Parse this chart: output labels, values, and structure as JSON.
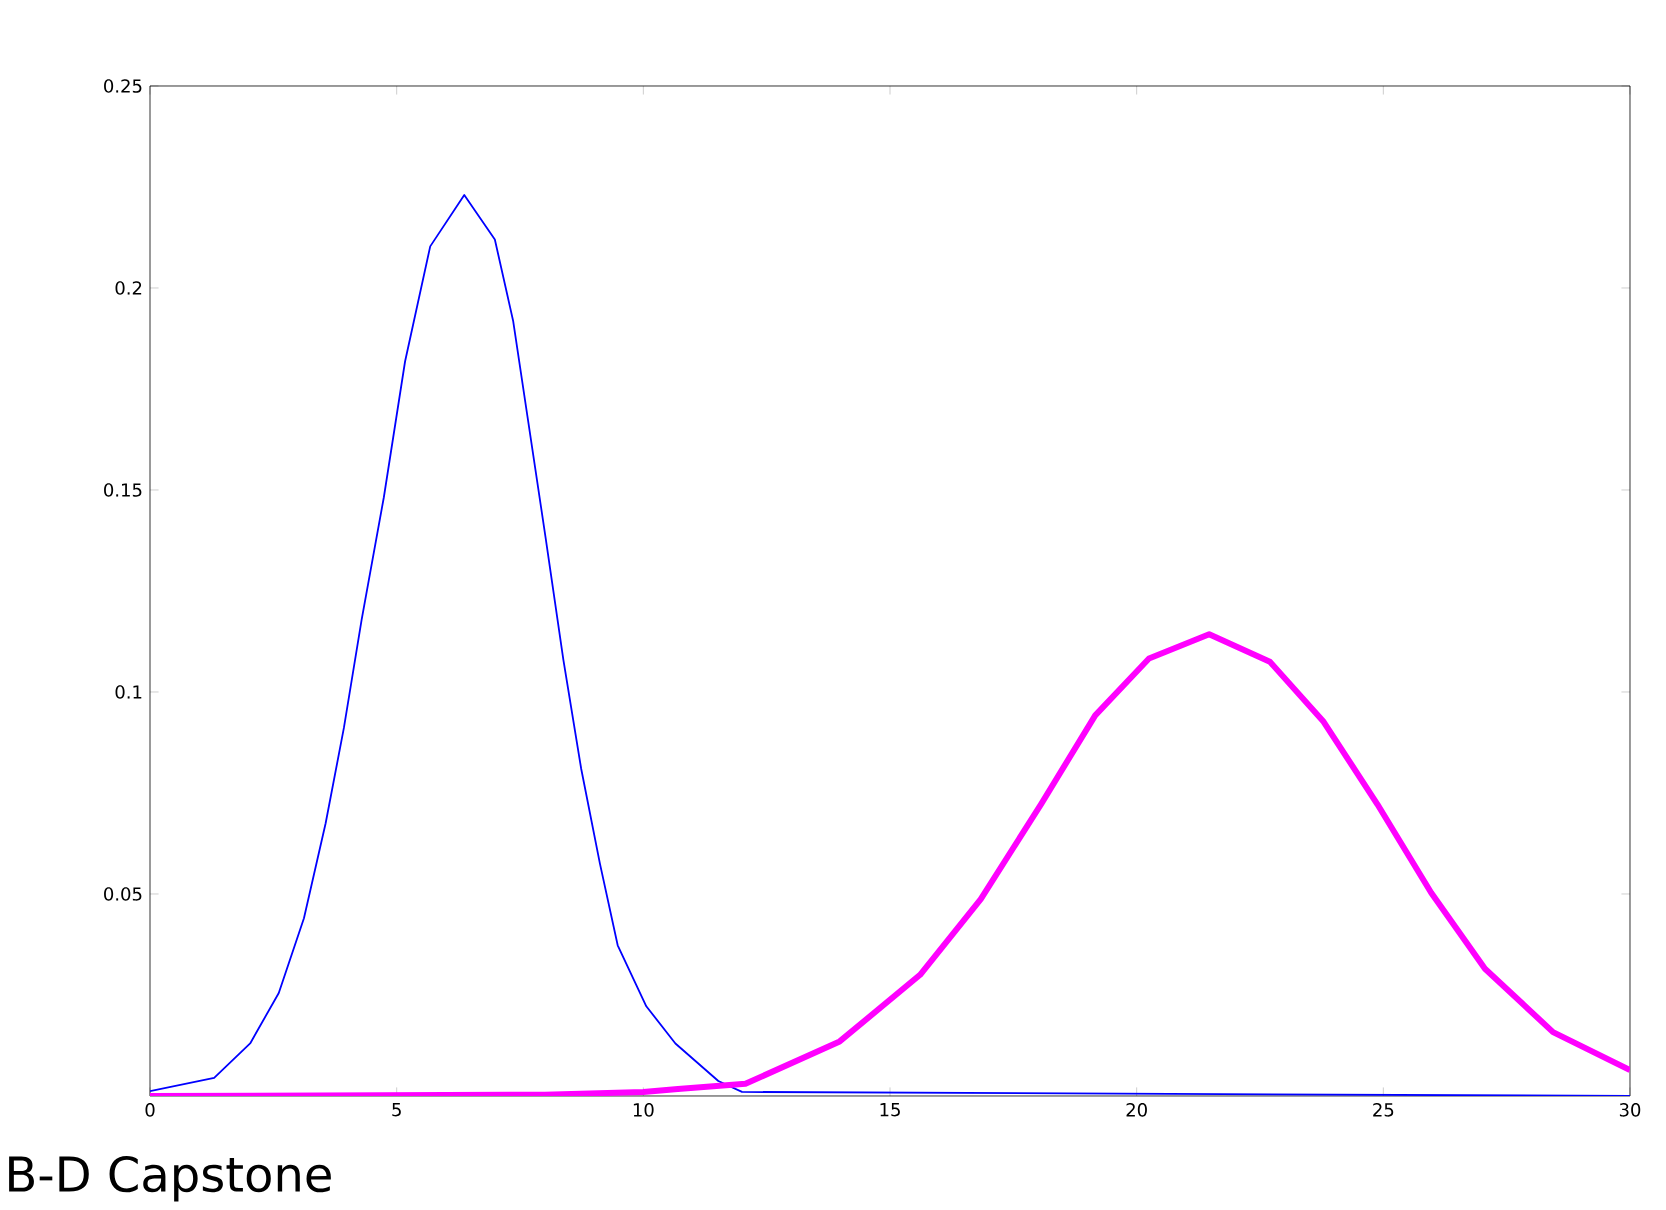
{
  "chart_data": {
    "type": "line",
    "xlim": [
      0,
      30
    ],
    "ylim": [
      0,
      0.25
    ],
    "xticks": [
      0,
      5,
      10,
      15,
      20,
      25,
      30
    ],
    "yticks": [
      0.05,
      0.1,
      0.15,
      0.2,
      0.25
    ],
    "marker": "none",
    "line_style": "solid",
    "annotations": [
      "B-D Capstone"
    ],
    "series": [
      {
        "color": "#0000ff",
        "x": [
          0,
          1.3,
          2.03,
          2.61,
          3.12,
          3.56,
          3.93,
          4.29,
          4.74,
          5.17,
          5.68,
          6.37,
          6.99,
          7.36,
          7.65,
          8.02,
          8.38,
          8.74,
          9.12,
          9.48,
          10.06,
          10.65,
          11.52,
          12,
          30
        ],
        "values": [
          0.0012,
          0.0045,
          0.013,
          0.0255,
          0.044,
          0.0675,
          0.0911,
          0.1179,
          0.1482,
          0.1818,
          0.2103,
          0.223,
          0.212,
          0.1919,
          0.1683,
          0.1381,
          0.1079,
          0.081,
          0.0575,
          0.0373,
          0.0222,
          0.013,
          0.0037,
          0.001,
          0
        ]
      },
      {
        "color": "#ff00ff",
        "x": [
          0,
          8,
          10,
          10.7,
          12.07,
          13.98,
          15.61,
          16.84,
          18.06,
          19.16,
          20.25,
          21.47,
          22.7,
          23.79,
          24.88,
          25.97,
          27.06,
          28.44,
          30
        ],
        "values": [
          0,
          0.0003,
          0.001,
          0.0017,
          0.003,
          0.0135,
          0.03,
          0.0487,
          0.0722,
          0.0942,
          0.1083,
          0.1143,
          0.1075,
          0.0926,
          0.0722,
          0.0503,
          0.0315,
          0.0158,
          0.0064
        ]
      }
    ]
  }
}
